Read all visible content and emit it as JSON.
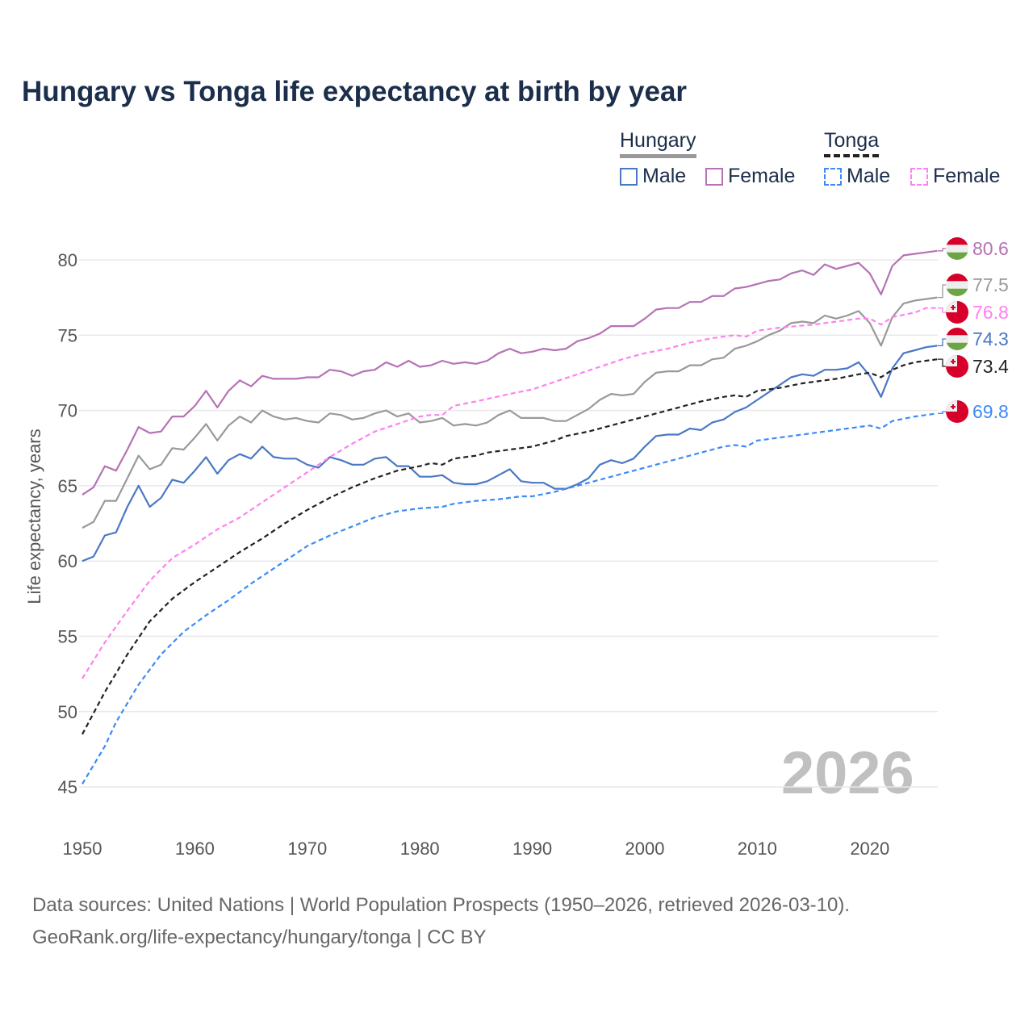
{
  "chart_data": {
    "type": "line",
    "title": "Hungary vs Tonga life expectancy at birth by year",
    "xlabel": "",
    "ylabel": "Life expectancy, years",
    "xlim": [
      1950,
      2026
    ],
    "ylim": [
      44,
      82
    ],
    "x_ticks": [
      1950,
      1960,
      1970,
      1980,
      1990,
      2000,
      2010,
      2020
    ],
    "y_ticks": [
      45,
      50,
      55,
      60,
      65,
      70,
      75,
      80
    ],
    "grid": true,
    "watermark_year": "2026",
    "legend": {
      "placement": "top-right",
      "groups": [
        {
          "name": "Hungary",
          "items": [
            "Male",
            "Female"
          ]
        },
        {
          "name": "Tonga",
          "items": [
            "Male",
            "Female"
          ]
        }
      ]
    },
    "series": [
      {
        "id": "hu-female",
        "country": "Hungary",
        "sex": "Female",
        "color": "#b672b4",
        "dashed": false,
        "end_label": "80.6",
        "x": [
          1950,
          1951,
          1952,
          1953,
          1954,
          1955,
          1956,
          1957,
          1958,
          1959,
          1960,
          1961,
          1962,
          1963,
          1964,
          1965,
          1966,
          1967,
          1968,
          1969,
          1970,
          1971,
          1972,
          1973,
          1974,
          1975,
          1976,
          1977,
          1978,
          1979,
          1980,
          1981,
          1982,
          1983,
          1984,
          1985,
          1986,
          1987,
          1988,
          1989,
          1990,
          1991,
          1992,
          1993,
          1994,
          1995,
          1996,
          1997,
          1998,
          1999,
          2000,
          2001,
          2002,
          2003,
          2004,
          2005,
          2006,
          2007,
          2008,
          2009,
          2010,
          2011,
          2012,
          2013,
          2014,
          2015,
          2016,
          2017,
          2018,
          2019,
          2020,
          2021,
          2022,
          2023,
          2024,
          2025,
          2026
        ],
        "y": [
          64.4,
          64.9,
          66.3,
          66.0,
          67.4,
          68.9,
          68.5,
          68.6,
          69.6,
          69.6,
          70.3,
          71.3,
          70.2,
          71.3,
          72.0,
          71.6,
          72.3,
          72.1,
          72.1,
          72.1,
          72.2,
          72.2,
          72.7,
          72.6,
          72.3,
          72.6,
          72.7,
          73.2,
          72.9,
          73.3,
          72.9,
          73.0,
          73.3,
          73.1,
          73.2,
          73.1,
          73.3,
          73.8,
          74.1,
          73.8,
          73.9,
          74.1,
          74.0,
          74.1,
          74.6,
          74.8,
          75.1,
          75.6,
          75.6,
          75.6,
          76.1,
          76.7,
          76.8,
          76.8,
          77.2,
          77.2,
          77.6,
          77.6,
          78.1,
          78.2,
          78.4,
          78.6,
          78.7,
          79.1,
          79.3,
          79.0,
          79.7,
          79.4,
          79.6,
          79.8,
          79.1,
          77.7,
          79.6,
          80.3,
          80.4,
          80.5,
          80.6
        ]
      },
      {
        "id": "hu-total",
        "country": "Hungary",
        "sex": "Total",
        "color": "#999999",
        "dashed": false,
        "end_label": "77.5",
        "x": [
          1950,
          1951,
          1952,
          1953,
          1954,
          1955,
          1956,
          1957,
          1958,
          1959,
          1960,
          1961,
          1962,
          1963,
          1964,
          1965,
          1966,
          1967,
          1968,
          1969,
          1970,
          1971,
          1972,
          1973,
          1974,
          1975,
          1976,
          1977,
          1978,
          1979,
          1980,
          1981,
          1982,
          1983,
          1984,
          1985,
          1986,
          1987,
          1988,
          1989,
          1990,
          1991,
          1992,
          1993,
          1994,
          1995,
          1996,
          1997,
          1998,
          1999,
          2000,
          2001,
          2002,
          2003,
          2004,
          2005,
          2006,
          2007,
          2008,
          2009,
          2010,
          2011,
          2012,
          2013,
          2014,
          2015,
          2016,
          2017,
          2018,
          2019,
          2020,
          2021,
          2022,
          2023,
          2024,
          2025,
          2026
        ],
        "y": [
          62.2,
          62.6,
          64.0,
          64.0,
          65.5,
          67.0,
          66.1,
          66.4,
          67.5,
          67.4,
          68.2,
          69.1,
          68.0,
          69.0,
          69.6,
          69.2,
          70.0,
          69.6,
          69.4,
          69.5,
          69.3,
          69.2,
          69.8,
          69.7,
          69.4,
          69.5,
          69.8,
          70.0,
          69.6,
          69.8,
          69.2,
          69.3,
          69.5,
          69.0,
          69.1,
          69.0,
          69.2,
          69.7,
          70.0,
          69.5,
          69.5,
          69.5,
          69.3,
          69.3,
          69.7,
          70.1,
          70.7,
          71.1,
          71.0,
          71.1,
          71.9,
          72.5,
          72.6,
          72.6,
          73.0,
          73.0,
          73.4,
          73.5,
          74.1,
          74.3,
          74.6,
          75.0,
          75.3,
          75.8,
          75.9,
          75.8,
          76.3,
          76.1,
          76.3,
          76.6,
          75.8,
          74.3,
          76.2,
          77.1,
          77.3,
          77.4,
          77.5
        ]
      },
      {
        "id": "hu-male",
        "country": "Hungary",
        "sex": "Male",
        "color": "#4a78c4",
        "dashed": false,
        "end_label": "74.3",
        "x": [
          1950,
          1951,
          1952,
          1953,
          1954,
          1955,
          1956,
          1957,
          1958,
          1959,
          1960,
          1961,
          1962,
          1963,
          1964,
          1965,
          1966,
          1967,
          1968,
          1969,
          1970,
          1971,
          1972,
          1973,
          1974,
          1975,
          1976,
          1977,
          1978,
          1979,
          1980,
          1981,
          1982,
          1983,
          1984,
          1985,
          1986,
          1987,
          1988,
          1989,
          1990,
          1991,
          1992,
          1993,
          1994,
          1995,
          1996,
          1997,
          1998,
          1999,
          2000,
          2001,
          2002,
          2003,
          2004,
          2005,
          2006,
          2007,
          2008,
          2009,
          2010,
          2011,
          2012,
          2013,
          2014,
          2015,
          2016,
          2017,
          2018,
          2019,
          2020,
          2021,
          2022,
          2023,
          2024,
          2025,
          2026
        ],
        "y": [
          60.0,
          60.3,
          61.7,
          61.9,
          63.6,
          65.0,
          63.6,
          64.2,
          65.4,
          65.2,
          66.0,
          66.9,
          65.8,
          66.7,
          67.1,
          66.8,
          67.6,
          66.9,
          66.8,
          66.8,
          66.4,
          66.2,
          66.9,
          66.7,
          66.4,
          66.4,
          66.8,
          66.9,
          66.3,
          66.3,
          65.6,
          65.6,
          65.7,
          65.2,
          65.1,
          65.1,
          65.3,
          65.7,
          66.1,
          65.3,
          65.2,
          65.2,
          64.8,
          64.8,
          65.1,
          65.5,
          66.4,
          66.7,
          66.5,
          66.8,
          67.6,
          68.3,
          68.4,
          68.4,
          68.8,
          68.7,
          69.2,
          69.4,
          69.9,
          70.2,
          70.7,
          71.2,
          71.7,
          72.2,
          72.4,
          72.3,
          72.7,
          72.7,
          72.8,
          73.2,
          72.3,
          70.9,
          72.8,
          73.8,
          74.0,
          74.2,
          74.3
        ]
      },
      {
        "id": "to-female",
        "country": "Tonga",
        "sex": "Female",
        "color": "#ff80f0",
        "dashed": true,
        "end_label": "76.8",
        "x": [
          1950,
          1952,
          1954,
          1956,
          1958,
          1960,
          1962,
          1964,
          1966,
          1968,
          1970,
          1972,
          1974,
          1976,
          1978,
          1980,
          1981,
          1982,
          1983,
          1985,
          1988,
          1990,
          1992,
          1994,
          1996,
          1998,
          2000,
          2002,
          2004,
          2006,
          2008,
          2009,
          2010,
          2012,
          2015,
          2017,
          2019,
          2020,
          2021,
          2022,
          2024,
          2025,
          2026
        ],
        "y": [
          52.2,
          54.6,
          56.7,
          58.7,
          60.2,
          61.1,
          62.1,
          62.9,
          63.9,
          64.9,
          65.9,
          66.9,
          67.8,
          68.6,
          69.1,
          69.6,
          69.7,
          69.7,
          70.3,
          70.6,
          71.1,
          71.4,
          71.9,
          72.4,
          72.9,
          73.4,
          73.8,
          74.1,
          74.5,
          74.8,
          75.0,
          74.9,
          75.3,
          75.5,
          75.7,
          75.9,
          76.1,
          76.1,
          75.7,
          76.2,
          76.5,
          76.8,
          76.8
        ]
      },
      {
        "id": "to-total",
        "country": "Tonga",
        "sex": "Total",
        "color": "#222222",
        "dashed": true,
        "end_label": "73.4",
        "x": [
          1950,
          1952,
          1954,
          1956,
          1958,
          1960,
          1962,
          1964,
          1966,
          1968,
          1970,
          1972,
          1974,
          1976,
          1978,
          1980,
          1981,
          1982,
          1983,
          1985,
          1986,
          1988,
          1990,
          1992,
          1993,
          1995,
          1998,
          2000,
          2003,
          2005,
          2007,
          2008,
          2009,
          2010,
          2012,
          2014,
          2015,
          2017,
          2019,
          2020,
          2021,
          2022,
          2023,
          2024,
          2025,
          2026
        ],
        "y": [
          48.5,
          51.3,
          53.8,
          56.0,
          57.5,
          58.6,
          59.6,
          60.6,
          61.5,
          62.5,
          63.4,
          64.2,
          64.9,
          65.5,
          66.0,
          66.3,
          66.5,
          66.4,
          66.8,
          67.0,
          67.2,
          67.4,
          67.6,
          68.0,
          68.3,
          68.6,
          69.2,
          69.6,
          70.2,
          70.6,
          70.9,
          71.0,
          70.9,
          71.3,
          71.5,
          71.8,
          71.9,
          72.1,
          72.4,
          72.5,
          72.2,
          72.7,
          73.0,
          73.2,
          73.3,
          73.4
        ]
      },
      {
        "id": "to-male",
        "country": "Tonga",
        "sex": "Male",
        "color": "#3d8af7",
        "dashed": true,
        "end_label": "69.8",
        "x": [
          1950,
          1952,
          1953,
          1955,
          1957,
          1959,
          1961,
          1963,
          1965,
          1967,
          1969,
          1970,
          1972,
          1974,
          1976,
          1978,
          1980,
          1982,
          1983,
          1985,
          1987,
          1989,
          1990,
          1992,
          1993,
          1995,
          1998,
          2000,
          2002,
          2005,
          2007,
          2008,
          2009,
          2010,
          2013,
          2016,
          2019,
          2020,
          2021,
          2022,
          2024,
          2025,
          2026
        ],
        "y": [
          45.2,
          47.7,
          49.3,
          51.8,
          53.8,
          55.3,
          56.4,
          57.4,
          58.5,
          59.5,
          60.5,
          61.0,
          61.7,
          62.3,
          62.9,
          63.3,
          63.5,
          63.6,
          63.8,
          64.0,
          64.1,
          64.3,
          64.3,
          64.6,
          64.8,
          65.2,
          65.8,
          66.2,
          66.6,
          67.2,
          67.6,
          67.7,
          67.6,
          68.0,
          68.3,
          68.6,
          68.9,
          69.0,
          68.8,
          69.3,
          69.6,
          69.7,
          69.8
        ]
      }
    ]
  },
  "footer": {
    "line1": "Data sources: United Nations | World Population Prospects (1950–2026, retrieved 2026-03-10).",
    "line2": "GeoRank.org/life-expectancy/hungary/tonga | CC BY"
  }
}
